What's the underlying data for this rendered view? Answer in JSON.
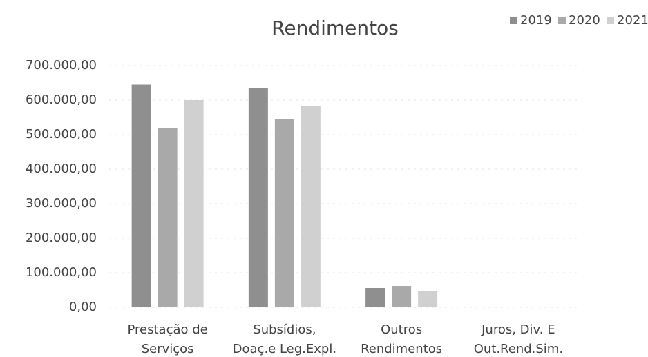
{
  "chart_data": {
    "type": "bar",
    "title": "Rendimentos",
    "categories": [
      [
        "Prestação de",
        "Serviços"
      ],
      [
        "Subsídios,",
        "Doaç.e Leg.Expl."
      ],
      [
        "Outros",
        "Rendimentos"
      ],
      [
        "Juros, Div. E",
        "Out.Rend.Sim."
      ]
    ],
    "series": [
      {
        "name": "2019",
        "color": "#8f8f8f",
        "values": [
          645000,
          634000,
          56000,
          0
        ]
      },
      {
        "name": "2020",
        "color": "#a9a9a9",
        "values": [
          518000,
          544000,
          62000,
          0
        ]
      },
      {
        "name": "2021",
        "color": "#d0d0d0",
        "values": [
          600000,
          584000,
          48000,
          0
        ]
      }
    ],
    "ylim": [
      0,
      700000
    ],
    "yticks": [
      {
        "value": 0,
        "label": "0,00"
      },
      {
        "value": 100000,
        "label": "100.000,00"
      },
      {
        "value": 200000,
        "label": "200.000,00"
      },
      {
        "value": 300000,
        "label": "300.000,00"
      },
      {
        "value": 400000,
        "label": "400.000,00"
      },
      {
        "value": 500000,
        "label": "500.000,00"
      },
      {
        "value": 600000,
        "label": "600.000,00"
      },
      {
        "value": 700000,
        "label": "700.000,00"
      }
    ],
    "grid": true,
    "legend": "top-right"
  }
}
